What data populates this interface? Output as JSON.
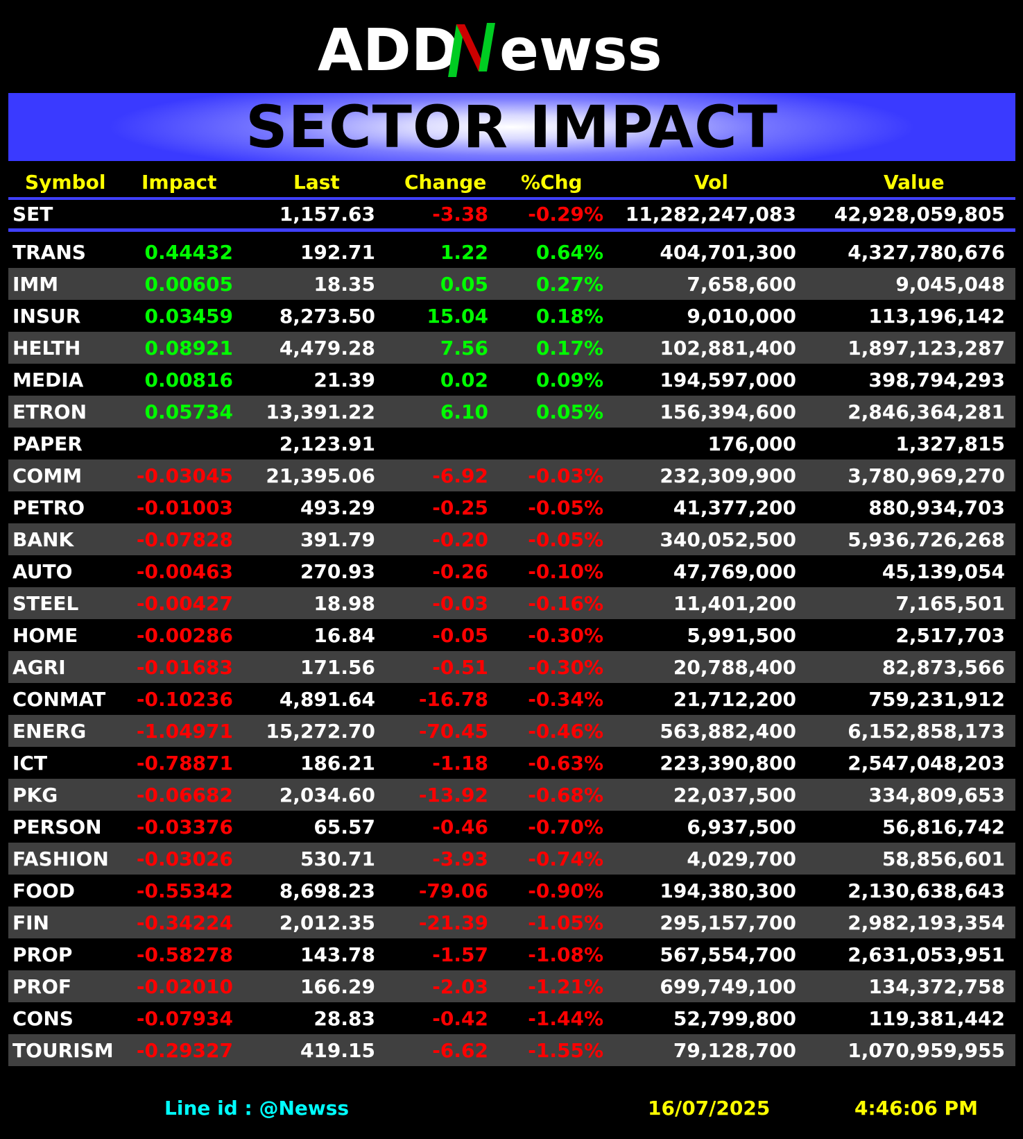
{
  "brand": {
    "logo_text": "ADDNewss"
  },
  "banner": {
    "title": "SECTOR IMPACT"
  },
  "colors": {
    "header": "#ffff00",
    "positive": "#00ff00",
    "negative": "#ff0000",
    "accent": "#4040ff",
    "footer_id": "#00ffff"
  },
  "columns": [
    "Symbol",
    "Impact",
    "Last",
    "Change",
    "%Chg",
    "Vol",
    "Value"
  ],
  "index_row": {
    "symbol": "SET",
    "impact": "",
    "last": "1,157.63",
    "change": "-3.38",
    "pct": "-0.29%",
    "vol": "11,282,247,083",
    "value": "42,928,059,805"
  },
  "rows": [
    {
      "symbol": "TRANS",
      "impact": "0.44432",
      "last": "192.71",
      "change": "1.22",
      "pct": "0.64%",
      "vol": "404,701,300",
      "value": "4,327,780,676",
      "dir": "pos"
    },
    {
      "symbol": "IMM",
      "impact": "0.00605",
      "last": "18.35",
      "change": "0.05",
      "pct": "0.27%",
      "vol": "7,658,600",
      "value": "9,045,048",
      "dir": "pos"
    },
    {
      "symbol": "INSUR",
      "impact": "0.03459",
      "last": "8,273.50",
      "change": "15.04",
      "pct": "0.18%",
      "vol": "9,010,000",
      "value": "113,196,142",
      "dir": "pos"
    },
    {
      "symbol": "HELTH",
      "impact": "0.08921",
      "last": "4,479.28",
      "change": "7.56",
      "pct": "0.17%",
      "vol": "102,881,400",
      "value": "1,897,123,287",
      "dir": "pos"
    },
    {
      "symbol": "MEDIA",
      "impact": "0.00816",
      "last": "21.39",
      "change": "0.02",
      "pct": "0.09%",
      "vol": "194,597,000",
      "value": "398,794,293",
      "dir": "pos"
    },
    {
      "symbol": "ETRON",
      "impact": "0.05734",
      "last": "13,391.22",
      "change": "6.10",
      "pct": "0.05%",
      "vol": "156,394,600",
      "value": "2,846,364,281",
      "dir": "pos"
    },
    {
      "symbol": "PAPER",
      "impact": "",
      "last": "2,123.91",
      "change": "",
      "pct": "",
      "vol": "176,000",
      "value": "1,327,815",
      "dir": "none"
    },
    {
      "symbol": "COMM",
      "impact": "-0.03045",
      "last": "21,395.06",
      "change": "-6.92",
      "pct": "-0.03%",
      "vol": "232,309,900",
      "value": "3,780,969,270",
      "dir": "neg"
    },
    {
      "symbol": "PETRO",
      "impact": "-0.01003",
      "last": "493.29",
      "change": "-0.25",
      "pct": "-0.05%",
      "vol": "41,377,200",
      "value": "880,934,703",
      "dir": "neg"
    },
    {
      "symbol": "BANK",
      "impact": "-0.07828",
      "last": "391.79",
      "change": "-0.20",
      "pct": "-0.05%",
      "vol": "340,052,500",
      "value": "5,936,726,268",
      "dir": "neg"
    },
    {
      "symbol": "AUTO",
      "impact": "-0.00463",
      "last": "270.93",
      "change": "-0.26",
      "pct": "-0.10%",
      "vol": "47,769,000",
      "value": "45,139,054",
      "dir": "neg"
    },
    {
      "symbol": "STEEL",
      "impact": "-0.00427",
      "last": "18.98",
      "change": "-0.03",
      "pct": "-0.16%",
      "vol": "11,401,200",
      "value": "7,165,501",
      "dir": "neg"
    },
    {
      "symbol": "HOME",
      "impact": "-0.00286",
      "last": "16.84",
      "change": "-0.05",
      "pct": "-0.30%",
      "vol": "5,991,500",
      "value": "2,517,703",
      "dir": "neg"
    },
    {
      "symbol": "AGRI",
      "impact": "-0.01683",
      "last": "171.56",
      "change": "-0.51",
      "pct": "-0.30%",
      "vol": "20,788,400",
      "value": "82,873,566",
      "dir": "neg"
    },
    {
      "symbol": "CONMAT",
      "impact": "-0.10236",
      "last": "4,891.64",
      "change": "-16.78",
      "pct": "-0.34%",
      "vol": "21,712,200",
      "value": "759,231,912",
      "dir": "neg"
    },
    {
      "symbol": "ENERG",
      "impact": "-1.04971",
      "last": "15,272.70",
      "change": "-70.45",
      "pct": "-0.46%",
      "vol": "563,882,400",
      "value": "6,152,858,173",
      "dir": "neg"
    },
    {
      "symbol": "ICT",
      "impact": "-0.78871",
      "last": "186.21",
      "change": "-1.18",
      "pct": "-0.63%",
      "vol": "223,390,800",
      "value": "2,547,048,203",
      "dir": "neg"
    },
    {
      "symbol": "PKG",
      "impact": "-0.06682",
      "last": "2,034.60",
      "change": "-13.92",
      "pct": "-0.68%",
      "vol": "22,037,500",
      "value": "334,809,653",
      "dir": "neg"
    },
    {
      "symbol": "PERSON",
      "impact": "-0.03376",
      "last": "65.57",
      "change": "-0.46",
      "pct": "-0.70%",
      "vol": "6,937,500",
      "value": "56,816,742",
      "dir": "neg"
    },
    {
      "symbol": "FASHION",
      "impact": "-0.03026",
      "last": "530.71",
      "change": "-3.93",
      "pct": "-0.74%",
      "vol": "4,029,700",
      "value": "58,856,601",
      "dir": "neg"
    },
    {
      "symbol": "FOOD",
      "impact": "-0.55342",
      "last": "8,698.23",
      "change": "-79.06",
      "pct": "-0.90%",
      "vol": "194,380,300",
      "value": "2,130,638,643",
      "dir": "neg"
    },
    {
      "symbol": "FIN",
      "impact": "-0.34224",
      "last": "2,012.35",
      "change": "-21.39",
      "pct": "-1.05%",
      "vol": "295,157,700",
      "value": "2,982,193,354",
      "dir": "neg"
    },
    {
      "symbol": "PROP",
      "impact": "-0.58278",
      "last": "143.78",
      "change": "-1.57",
      "pct": "-1.08%",
      "vol": "567,554,700",
      "value": "2,631,053,951",
      "dir": "neg"
    },
    {
      "symbol": "PROF",
      "impact": "-0.02010",
      "last": "166.29",
      "change": "-2.03",
      "pct": "-1.21%",
      "vol": "699,749,100",
      "value": "134,372,758",
      "dir": "neg"
    },
    {
      "symbol": "CONS",
      "impact": "-0.07934",
      "last": "28.83",
      "change": "-0.42",
      "pct": "-1.44%",
      "vol": "52,799,800",
      "value": "119,381,442",
      "dir": "neg"
    },
    {
      "symbol": "TOURISM",
      "impact": "-0.29327",
      "last": "419.15",
      "change": "-6.62",
      "pct": "-1.55%",
      "vol": "79,128,700",
      "value": "1,070,959,955",
      "dir": "neg"
    }
  ],
  "footer": {
    "line_id": "Line id  : @Newss",
    "date": "16/07/2025",
    "time": "4:46:06 PM"
  }
}
